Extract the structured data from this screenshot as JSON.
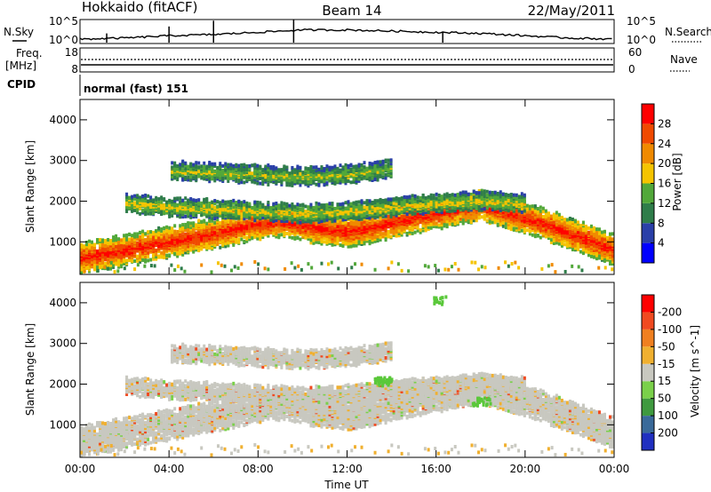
{
  "header": {
    "station": "Hokkaido (fitACF)",
    "beam": "Beam 14",
    "date": "22/May/2011"
  },
  "strip_labels": {
    "nsky": "N.Sky",
    "nsearch": "N.Search",
    "freq_line1": "Freq.",
    "freq_line2": "[MHz]",
    "nave": "Nave",
    "cpid": "CPID",
    "cpid_value": "normal (fast) 151",
    "nsky_ticks": [
      "10^5",
      "10^0"
    ],
    "nsearch_ticks": [
      "10^5",
      "10^0"
    ],
    "freq_ticks": [
      "18",
      "8"
    ],
    "nave_ticks": [
      "60",
      "0"
    ]
  },
  "time_axis": {
    "label": "Time UT",
    "ticks": [
      "00:00",
      "04:00",
      "08:00",
      "12:00",
      "16:00",
      "20:00",
      "00:00"
    ]
  },
  "chart_data": [
    {
      "type": "heatmap",
      "parameter": "Power",
      "ylabel": "Slant Range [km]",
      "yticks": [
        1000,
        2000,
        3000,
        4000
      ],
      "ylim": [
        200,
        4500
      ],
      "x_range_hours": [
        0,
        24
      ],
      "colorbar": {
        "label": "Power [dB]",
        "ticks": [
          "4",
          "8",
          "12",
          "16",
          "20",
          "24",
          "28"
        ],
        "range": [
          0,
          32
        ],
        "colors": [
          "#0000ff",
          "#2a3fa8",
          "#2f7d4a",
          "#52a83a",
          "#f5c400",
          "#f08a00",
          "#f04a00",
          "#ff0000"
        ]
      },
      "bands": [
        {
          "desc": "main ionospheric band",
          "hours": [
            0,
            1.5,
            3,
            4.5,
            6,
            7.5,
            9,
            10.5,
            12,
            13.5,
            15,
            16.5,
            18,
            19.5,
            21,
            22.5,
            24
          ],
          "range_center_km": [
            650,
            800,
            950,
            1100,
            1250,
            1450,
            1550,
            1400,
            1300,
            1450,
            1650,
            1800,
            1950,
            1700,
            1450,
            1150,
            850
          ],
          "power_db": 30
        },
        {
          "desc": "upper band",
          "hours": [
            2,
            4,
            6,
            8,
            10,
            12,
            14,
            16,
            18,
            20
          ],
          "range_center_km": [
            2000,
            1900,
            1850,
            1800,
            1750,
            1800,
            1900,
            2000,
            2050,
            2000
          ],
          "power_db": 18
        },
        {
          "desc": "high range echoes",
          "hours": [
            4,
            6,
            8,
            10,
            12,
            14
          ],
          "range_center_km": [
            2800,
            2750,
            2700,
            2650,
            2700,
            2850
          ],
          "power_db": 16
        }
      ]
    },
    {
      "type": "heatmap",
      "parameter": "Velocity",
      "ylabel": "Slant Range [km]",
      "yticks": [
        1000,
        2000,
        3000,
        4000
      ],
      "ylim": [
        200,
        4500
      ],
      "x_range_hours": [
        0,
        24
      ],
      "colorbar": {
        "label": "Velocity [m s^-1]",
        "ticks": [
          "200",
          "100",
          "50",
          "15",
          "-15",
          "-50",
          "-100",
          "-200"
        ],
        "colors": [
          "#2030c0",
          "#3a6a9a",
          "#3f9a3f",
          "#7ad04a",
          "#c8c8c0",
          "#f0b030",
          "#f08020",
          "#f04a20",
          "#ff0000"
        ]
      },
      "notes": "Most echoes near zero velocity (grey ground scatter); green patches near 13:30 UT ~2100 km and 18:00 UT ~1600 km"
    }
  ],
  "strip_series": {
    "nsky_hours": [
      0,
      2,
      4,
      6,
      8,
      10,
      12,
      14,
      16,
      18,
      20,
      22,
      24
    ],
    "nsky_level": [
      0.15,
      0.2,
      0.3,
      0.35,
      0.45,
      0.55,
      0.55,
      0.5,
      0.45,
      0.4,
      0.3,
      0.2,
      0.15
    ],
    "freq_mhz": 10.2,
    "nave": 22
  }
}
